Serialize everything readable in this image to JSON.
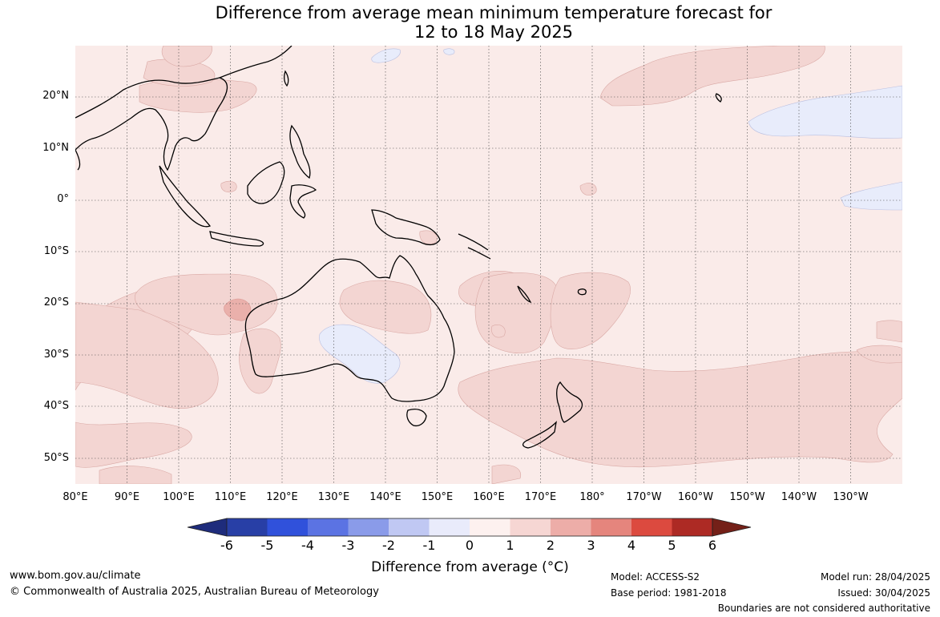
{
  "title": {
    "line1": "Difference from average mean minimum temperature forecast for",
    "line2": "12 to 18 May 2025"
  },
  "map": {
    "latitude_labels": [
      "20°N",
      "10°N",
      "0°",
      "10°S",
      "20°S",
      "30°S",
      "40°S",
      "50°S"
    ],
    "longitude_labels": [
      "80°E",
      "90°E",
      "100°E",
      "110°E",
      "120°E",
      "130°E",
      "140°E",
      "150°E",
      "160°E",
      "170°E",
      "180°",
      "170°W",
      "160°W",
      "150°W",
      "140°W",
      "130°W"
    ],
    "colors": {
      "ocean_background": "#faebe9",
      "anomaly_1_to_2": "#f3d5d2",
      "anomaly_2_to_3": "#eab0ab",
      "anomaly_minus1_to_0": "#e8ecfb",
      "coastline": "#000000",
      "border": "#808080",
      "grid": "#555555"
    }
  },
  "colorbar": {
    "ticks": [
      "-6",
      "-5",
      "-4",
      "-3",
      "-2",
      "-1",
      "0",
      "1",
      "2",
      "3",
      "4",
      "5",
      "6"
    ],
    "colors": [
      "#1e2c7c",
      "#283fa6",
      "#3051db",
      "#5b73e3",
      "#8a9be9",
      "#c0c8f3",
      "#e9ebfb",
      "#fdf1ef",
      "#f6d6d3",
      "#edada8",
      "#e5857d",
      "#dc4a3f",
      "#ad2a24",
      "#742018"
    ],
    "label": "Difference from average (°C)"
  },
  "footer": {
    "website": "www.bom.gov.au/climate",
    "copyright": "© Commonwealth of Australia 2025, Australian Bureau of Meteorology",
    "model": "Model: ACCESS-S2",
    "base_period": "Base period: 1981-2018",
    "model_run": "Model run: 28/04/2025",
    "issued": "Issued: 30/04/2025",
    "disclaimer": "Boundaries are not considered authoritative"
  }
}
